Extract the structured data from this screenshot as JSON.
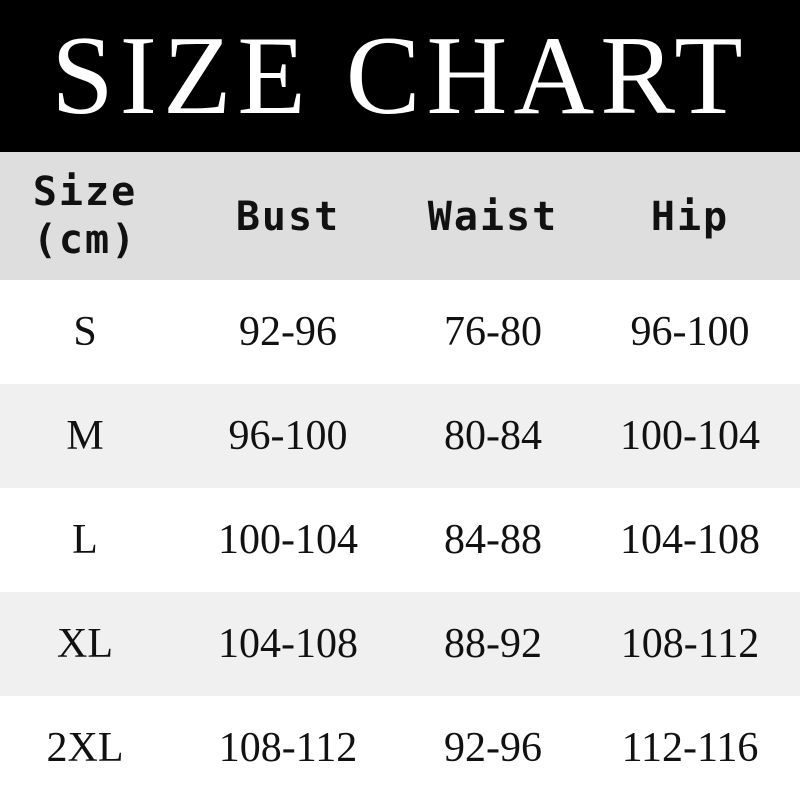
{
  "title": "SIZE CHART",
  "header": {
    "size_line1": "Size",
    "size_line2": "(cm)",
    "bust": "Bust",
    "waist": "Waist",
    "hip": "Hip"
  },
  "rows": [
    {
      "size": "S",
      "bust": "92-96",
      "waist": "76-80",
      "hip": "96-100"
    },
    {
      "size": "M",
      "bust": "96-100",
      "waist": "80-84",
      "hip": "100-104"
    },
    {
      "size": "L",
      "bust": "100-104",
      "waist": "84-88",
      "hip": "104-108"
    },
    {
      "size": "XL",
      "bust": "104-108",
      "waist": "88-92",
      "hip": "108-112"
    },
    {
      "size": "2XL",
      "bust": "108-112",
      "waist": "92-96",
      "hip": "112-116"
    }
  ],
  "colors": {
    "title_bg": "#000000",
    "header_bg": "#dedede",
    "alt_row_bg": "#f0f0f0"
  }
}
